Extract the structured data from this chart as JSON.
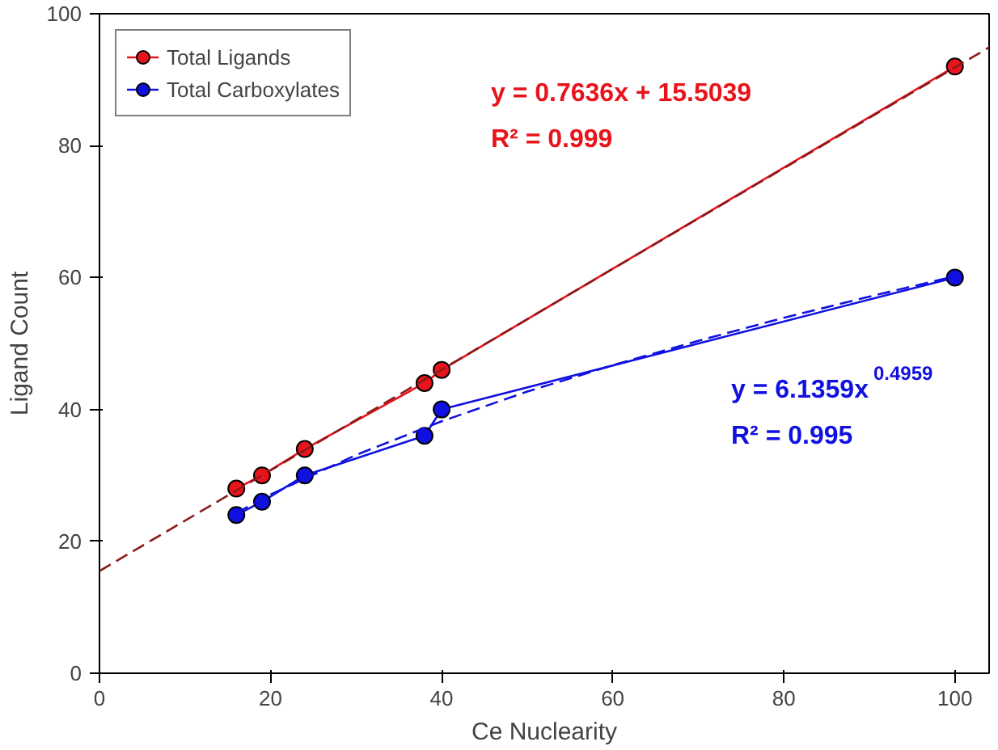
{
  "chart_data": {
    "type": "line",
    "xlabel": "Ce Nuclearity",
    "ylabel": "Ligand Count",
    "xlim": [
      0,
      104
    ],
    "ylim": [
      0,
      100
    ],
    "xticks": [
      0,
      20,
      40,
      60,
      80,
      100
    ],
    "yticks": [
      0,
      20,
      40,
      60,
      80,
      100
    ],
    "grid": false,
    "legend": "top left",
    "marker": "circle",
    "series": [
      {
        "name": "Total Ligands",
        "color": "#e8141b",
        "x": [
          16,
          19,
          24,
          38,
          40,
          100
        ],
        "values": [
          28,
          30,
          34,
          44,
          46,
          92
        ]
      },
      {
        "name": "Total Carboxylates",
        "color": "#1010e0",
        "x": [
          16,
          19,
          24,
          38,
          40,
          100
        ],
        "values": [
          24,
          26,
          30,
          36,
          40,
          60
        ]
      },
      {
        "color": "#8b1a1a",
        "line_style": "dashed",
        "marker": "none",
        "x": [
          0,
          104
        ],
        "values": [
          15.5,
          94.9
        ]
      },
      {
        "color": "#1010e0",
        "line_style": "dashed",
        "marker": "none",
        "x": [
          16,
          20,
          30,
          40,
          50,
          60,
          70,
          80,
          90,
          100
        ],
        "values": [
          24.3,
          27.1,
          33.1,
          38.2,
          42.7,
          46.7,
          50.4,
          53.9,
          57.1,
          60.2
        ]
      }
    ],
    "annotations": [
      "y = 0.7636x + 15.5039",
      "R² = 0.999",
      "y = 6.1359x$^{0.4959}$",
      "R² = 0.995"
    ]
  }
}
